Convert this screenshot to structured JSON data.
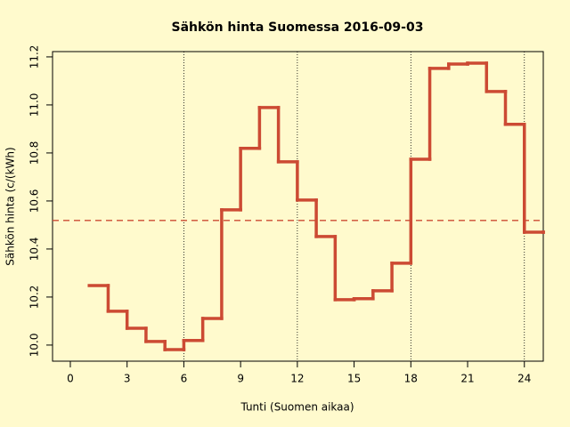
{
  "chart_data": {
    "type": "step",
    "title": "Sähkön hinta Suomessa 2016-09-03",
    "x_label": "Tunti (Suomen aikaa)",
    "y_label": "Sähkön hinta (c/(kWh)",
    "color": "#cc4a33",
    "x": [
      1,
      2,
      3,
      4,
      5,
      6,
      7,
      8,
      9,
      10,
      11,
      12,
      13,
      14,
      15,
      16,
      17,
      18,
      19,
      20,
      21,
      22,
      23,
      24,
      25
    ],
    "values": [
      10.248,
      10.141,
      10.07,
      10.015,
      9.981,
      10.019,
      10.111,
      10.563,
      10.819,
      10.989,
      10.763,
      10.604,
      10.452,
      10.189,
      10.193,
      10.226,
      10.341,
      10.774,
      11.152,
      11.17,
      11.174,
      11.056,
      10.919,
      10.47,
      10.47
    ],
    "mean_line": 10.519,
    "vlines": [
      6,
      12,
      18,
      24
    ],
    "xlim": [
      -0.94,
      25
    ],
    "ylim": [
      9.933,
      11.222
    ],
    "xticks": [
      0,
      3,
      6,
      9,
      12,
      15,
      18,
      21,
      24
    ],
    "yticks": [
      {
        "value": 10.0,
        "label": "10.0"
      },
      10.2,
      10.4,
      10.6,
      10.8,
      {
        "value": 11.0,
        "label": "11.0"
      },
      11.2
    ]
  }
}
